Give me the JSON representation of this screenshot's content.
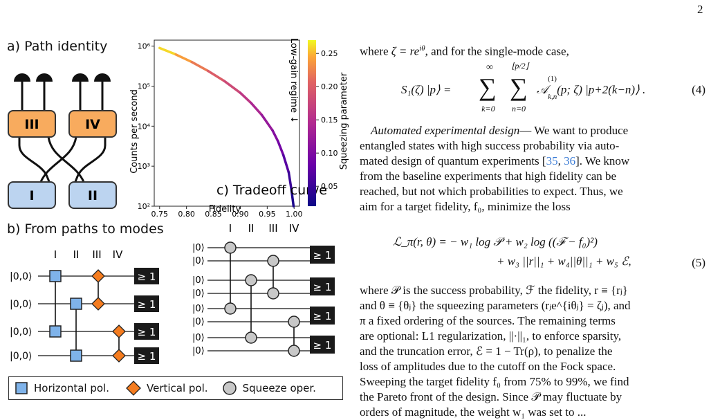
{
  "page_number": "2",
  "panels": {
    "a": {
      "title": "a) Path identity",
      "boxes": [
        "III",
        "IV",
        "I",
        "II"
      ]
    },
    "b": {
      "title": "b) From paths to modes",
      "path_labels": [
        "I",
        "II",
        "III",
        "IV"
      ],
      "left_inputs": [
        "|0,0⟩",
        "|0,0⟩",
        "|0,0⟩",
        "|0,0⟩"
      ],
      "right_inputs": [
        "|0⟩",
        "|0⟩",
        "|0⟩",
        "|0⟩",
        "|0⟩",
        "|0⟩",
        "|0⟩",
        "|0⟩"
      ],
      "detector_label": "≥ 1"
    },
    "c": {
      "title": "c) Tradeoff curve",
      "annotation": "Low-gain regime ↓"
    }
  },
  "legend": {
    "horizontal": "Horizontal pol.",
    "vertical": "Vertical pol.",
    "squeeze": "Squeeze oper."
  },
  "chart_data": {
    "type": "line",
    "title": "c) Tradeoff curve",
    "xlabel": "Fidelity",
    "ylabel": "Counts per second",
    "colorbar_label": "Squeezing parameter",
    "x_ticks": [
      "0.75",
      "0.80",
      "0.85",
      "0.90",
      "0.95",
      "1.00"
    ],
    "y_ticks": [
      "10²",
      "10³",
      "10⁴",
      "10⁵",
      "10⁶"
    ],
    "colorbar_ticks": [
      "0.05",
      "0.10",
      "0.15",
      "0.20",
      "0.25"
    ],
    "xlim": [
      0.74,
      1.01
    ],
    "ylim_log10": [
      2,
      6.15
    ],
    "y_scale": "log",
    "colorbar_range": [
      0.02,
      0.27
    ],
    "colormap": "plasma",
    "series": [
      {
        "x": [
          0.75,
          0.78,
          0.81,
          0.84,
          0.87,
          0.9,
          0.92,
          0.94,
          0.96,
          0.97,
          0.98,
          0.99,
          0.995,
          0.999
        ],
        "y": [
          900000,
          620000,
          400000,
          240000,
          135000,
          68000,
          38000,
          19000,
          7800,
          4200,
          1900,
          700,
          260,
          100
        ],
        "color_value": [
          0.27,
          0.25,
          0.23,
          0.21,
          0.19,
          0.17,
          0.15,
          0.13,
          0.11,
          0.1,
          0.08,
          0.06,
          0.04,
          0.02
        ]
      }
    ],
    "grid": false
  },
  "text_column": {
    "line1_pre": "where ",
    "line1_zeta": "ζ = re",
    "line1_sup": "iθ",
    "line1_post": ", and for the single-mode case,",
    "equation4": {
      "lhs": "S₁(ζ) |p⟩ = ",
      "sum1_top": "∞",
      "sum1_bottom": "k=0",
      "sum2_top": "⌊p/2⌋",
      "sum2_bottom": "n=0",
      "term": "𝒜",
      "term_sup": "(1)",
      "term_sub": "k,n",
      "term_args": "(p; ζ) |p+2(k−n)⟩ .",
      "number": "(4)"
    },
    "para2_lead": "Automated experimental design",
    "para2_lines": [
      "— We want to produce",
      "entangled states with high success probability via auto-",
      "mated design of quantum experiments [35, 36]. We know",
      "from the baseline experiments that high fidelity can be",
      "reached, but not which probabilities to expect. Thus, we",
      "aim for a target fidelity, f₀, minimize the loss"
    ],
    "equation5": {
      "line1": "ℒ_π(r, θ) = − w₁ log 𝒫 + w₂ log ((ℱ − f₀)²)",
      "line2": "+ w₃ ||r||₁ + w₄||θ||₁ + w₅ ℰ,",
      "number": "(5)"
    },
    "para3_lines": [
      "where 𝒫 is the success probability, ℱ the fidelity, r ≡ {rⱼ}",
      "and θ ≡ {θⱼ} the squeezing parameters (rⱼe^{iθⱼ} = ζⱼ), and",
      "π a fixed ordering of the sources. The remaining terms",
      "are optional: L1 regularization, ||·||₁, to enforce sparsity,",
      "and the truncation error, ℰ = 1 − Tr(ρ), to penalize the",
      "loss of amplitudes due to the cutoff on the Fock space.",
      "Sweeping the target fidelity f₀ from 75% to 99%, we find",
      "the Pareto front of the design. Since 𝒫 may fluctuate by"
    ],
    "para3_cut": "orders of magnitude, the weight w₁ was set to ..."
  },
  "colors": {
    "orange": "#f8ab5e",
    "blue": "#bcd4f0",
    "detector": "#1a1a1a",
    "square_blue": "#7fb3ea",
    "diamond_orange": "#f57c1f",
    "circle_gray": "#c8c8c8"
  }
}
